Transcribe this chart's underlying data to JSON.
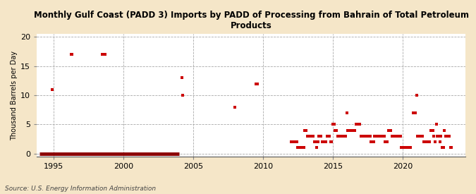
{
  "title": "Monthly Gulf Coast (PADD 3) Imports by PADD of Processing from Bahrain of Total Petroleum\nProducts",
  "ylabel": "Thousand Barrels per Day",
  "source": "Source: U.S. Energy Information Administration",
  "xlim": [
    1993.8,
    2024.5
  ],
  "ylim": [
    -0.5,
    20.5
  ],
  "yticks": [
    0,
    5,
    10,
    15,
    20
  ],
  "xticks": [
    1995,
    2000,
    2005,
    2010,
    2015,
    2020
  ],
  "background_color": "#f5e6c8",
  "plot_bg_color": "#ffffff",
  "marker_color": "#cc0000",
  "zero_line_color": "#8b0000",
  "scatter_data": [
    [
      1994.917,
      11.0
    ],
    [
      1996.25,
      17.0
    ],
    [
      1996.333,
      17.0
    ],
    [
      1998.5,
      17.0
    ],
    [
      1998.667,
      17.0
    ],
    [
      2004.167,
      13.0
    ],
    [
      2004.25,
      10.0
    ],
    [
      2008.0,
      8.0
    ],
    [
      2009.5,
      12.0
    ],
    [
      2009.583,
      12.0
    ],
    [
      2012.0,
      2.0
    ],
    [
      2012.083,
      2.0
    ],
    [
      2012.167,
      2.0
    ],
    [
      2012.25,
      2.0
    ],
    [
      2012.333,
      2.0
    ],
    [
      2012.417,
      2.0
    ],
    [
      2012.5,
      1.0
    ],
    [
      2012.583,
      1.0
    ],
    [
      2012.667,
      1.0
    ],
    [
      2012.75,
      1.0
    ],
    [
      2012.833,
      1.0
    ],
    [
      2012.917,
      1.0
    ],
    [
      2013.0,
      4.0
    ],
    [
      2013.083,
      4.0
    ],
    [
      2013.167,
      3.0
    ],
    [
      2013.25,
      3.0
    ],
    [
      2013.333,
      3.0
    ],
    [
      2013.417,
      3.0
    ],
    [
      2013.5,
      3.0
    ],
    [
      2013.583,
      3.0
    ],
    [
      2013.667,
      2.0
    ],
    [
      2013.75,
      2.0
    ],
    [
      2013.833,
      1.0
    ],
    [
      2013.917,
      2.0
    ],
    [
      2014.0,
      3.0
    ],
    [
      2014.083,
      3.0
    ],
    [
      2014.167,
      3.0
    ],
    [
      2014.25,
      2.0
    ],
    [
      2014.333,
      2.0
    ],
    [
      2014.417,
      2.0
    ],
    [
      2014.5,
      2.0
    ],
    [
      2014.583,
      3.0
    ],
    [
      2014.667,
      3.0
    ],
    [
      2014.75,
      3.0
    ],
    [
      2014.833,
      2.0
    ],
    [
      2014.917,
      2.0
    ],
    [
      2015.0,
      5.0
    ],
    [
      2015.083,
      5.0
    ],
    [
      2015.167,
      4.0
    ],
    [
      2015.25,
      4.0
    ],
    [
      2015.333,
      3.0
    ],
    [
      2015.417,
      3.0
    ],
    [
      2015.5,
      3.0
    ],
    [
      2015.583,
      3.0
    ],
    [
      2015.667,
      3.0
    ],
    [
      2015.75,
      3.0
    ],
    [
      2015.833,
      3.0
    ],
    [
      2015.917,
      3.0
    ],
    [
      2016.0,
      7.0
    ],
    [
      2016.083,
      4.0
    ],
    [
      2016.167,
      4.0
    ],
    [
      2016.25,
      4.0
    ],
    [
      2016.333,
      4.0
    ],
    [
      2016.417,
      4.0
    ],
    [
      2016.5,
      4.0
    ],
    [
      2016.583,
      4.0
    ],
    [
      2016.667,
      5.0
    ],
    [
      2016.75,
      5.0
    ],
    [
      2016.833,
      5.0
    ],
    [
      2016.917,
      5.0
    ],
    [
      2017.0,
      3.0
    ],
    [
      2017.083,
      3.0
    ],
    [
      2017.167,
      3.0
    ],
    [
      2017.25,
      3.0
    ],
    [
      2017.333,
      3.0
    ],
    [
      2017.417,
      3.0
    ],
    [
      2017.5,
      3.0
    ],
    [
      2017.583,
      3.0
    ],
    [
      2017.667,
      3.0
    ],
    [
      2017.75,
      2.0
    ],
    [
      2017.833,
      2.0
    ],
    [
      2017.917,
      2.0
    ],
    [
      2018.0,
      3.0
    ],
    [
      2018.083,
      3.0
    ],
    [
      2018.167,
      3.0
    ],
    [
      2018.25,
      3.0
    ],
    [
      2018.333,
      3.0
    ],
    [
      2018.417,
      3.0
    ],
    [
      2018.5,
      3.0
    ],
    [
      2018.583,
      3.0
    ],
    [
      2018.667,
      3.0
    ],
    [
      2018.75,
      2.0
    ],
    [
      2018.833,
      2.0
    ],
    [
      2018.917,
      2.0
    ],
    [
      2019.0,
      4.0
    ],
    [
      2019.083,
      4.0
    ],
    [
      2019.167,
      4.0
    ],
    [
      2019.25,
      3.0
    ],
    [
      2019.333,
      3.0
    ],
    [
      2019.417,
      3.0
    ],
    [
      2019.5,
      3.0
    ],
    [
      2019.583,
      3.0
    ],
    [
      2019.667,
      3.0
    ],
    [
      2019.75,
      3.0
    ],
    [
      2019.833,
      3.0
    ],
    [
      2019.917,
      1.0
    ],
    [
      2020.083,
      1.0
    ],
    [
      2020.167,
      1.0
    ],
    [
      2020.25,
      1.0
    ],
    [
      2020.333,
      1.0
    ],
    [
      2020.417,
      1.0
    ],
    [
      2020.583,
      1.0
    ],
    [
      2020.75,
      7.0
    ],
    [
      2020.833,
      7.0
    ],
    [
      2020.917,
      7.0
    ],
    [
      2021.0,
      10.0
    ],
    [
      2021.083,
      3.0
    ],
    [
      2021.167,
      3.0
    ],
    [
      2021.25,
      3.0
    ],
    [
      2021.333,
      3.0
    ],
    [
      2021.417,
      3.0
    ],
    [
      2021.5,
      2.0
    ],
    [
      2021.583,
      2.0
    ],
    [
      2021.667,
      2.0
    ],
    [
      2021.75,
      2.0
    ],
    [
      2021.833,
      2.0
    ],
    [
      2021.917,
      2.0
    ],
    [
      2022.0,
      4.0
    ],
    [
      2022.083,
      4.0
    ],
    [
      2022.167,
      4.0
    ],
    [
      2022.25,
      3.0
    ],
    [
      2022.333,
      2.0
    ],
    [
      2022.417,
      5.0
    ],
    [
      2022.5,
      3.0
    ],
    [
      2022.583,
      3.0
    ],
    [
      2022.667,
      2.0
    ],
    [
      2022.75,
      3.0
    ],
    [
      2022.833,
      1.0
    ],
    [
      2022.917,
      1.0
    ],
    [
      2023.0,
      4.0
    ],
    [
      2023.083,
      3.0
    ],
    [
      2023.167,
      3.0
    ],
    [
      2023.25,
      3.0
    ],
    [
      2023.333,
      3.0
    ],
    [
      2023.417,
      1.0
    ],
    [
      2023.5,
      1.0
    ]
  ],
  "zero_data_start": 1994.0,
  "zero_data_end": 2004.0
}
